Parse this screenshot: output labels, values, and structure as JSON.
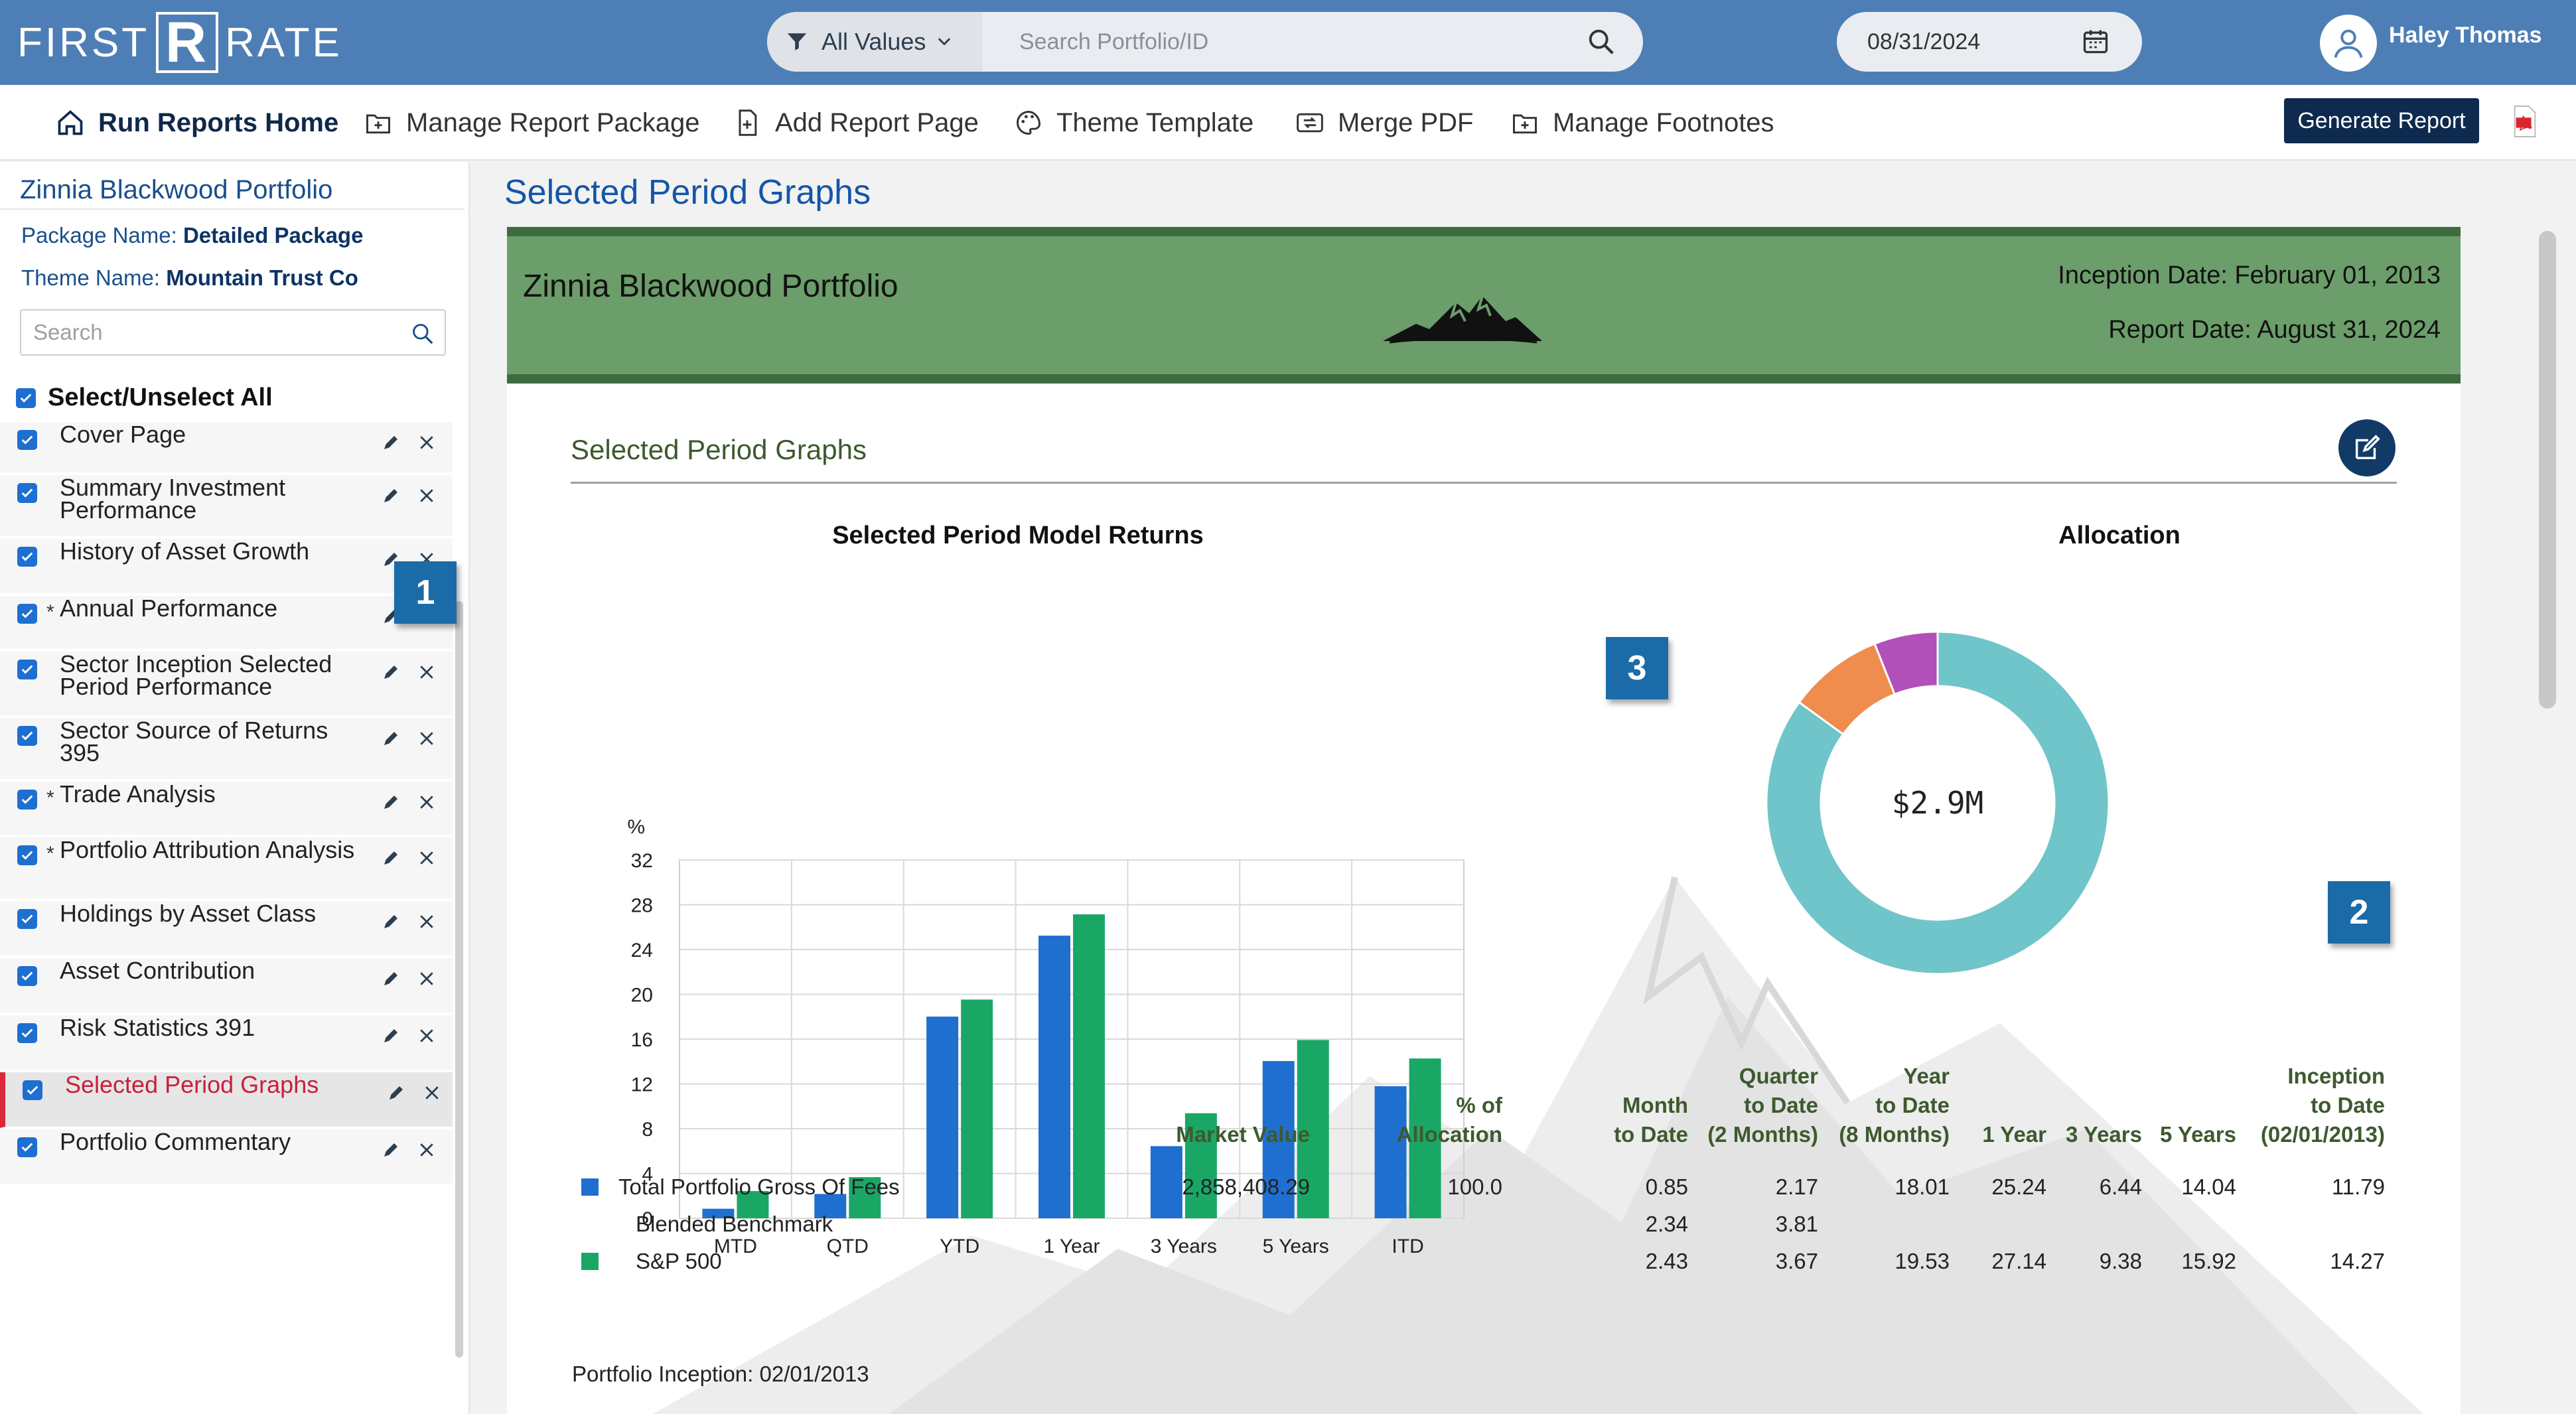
{
  "app": {
    "logo_left": "FIRST",
    "logo_mark": "R",
    "logo_right": "RATE"
  },
  "header": {
    "filter_label": "All Values",
    "search_placeholder": "Search Portfolio/ID",
    "date": "08/31/2024",
    "user_name": "Haley Thomas"
  },
  "toolbar": {
    "items": [
      "Run Reports Home",
      "Manage Report Package",
      "Add Report Page",
      "Theme Template",
      "Merge PDF",
      "Manage Footnotes"
    ],
    "generate_label": "Generate Report"
  },
  "sidebar": {
    "title": "Zinnia Blackwood Portfolio",
    "package_label": "Package Name:",
    "package_value": "Detailed Package",
    "theme_label": "Theme Name:",
    "theme_value": "Mountain Trust Co",
    "search_placeholder": "Search",
    "select_all": "Select/Unselect All",
    "items": [
      {
        "label": "Cover Page",
        "starred": false,
        "checked": true
      },
      {
        "label": "Summary Investment Performance",
        "starred": false,
        "checked": true
      },
      {
        "label": "History of Asset Growth",
        "starred": false,
        "checked": true
      },
      {
        "label": "Annual Performance",
        "starred": true,
        "checked": true
      },
      {
        "label": "Sector Inception Selected Period Performance",
        "starred": false,
        "checked": true
      },
      {
        "label": "Sector Source of Returns 395",
        "starred": false,
        "checked": true
      },
      {
        "label": "Trade Analysis",
        "starred": true,
        "checked": true
      },
      {
        "label": "Portfolio Attribution Analysis",
        "starred": true,
        "checked": true
      },
      {
        "label": "Holdings by Asset Class",
        "starred": false,
        "checked": true
      },
      {
        "label": "Asset Contribution",
        "starred": false,
        "checked": true
      },
      {
        "label": "Risk Statistics 391",
        "starred": false,
        "checked": true
      },
      {
        "label": "Selected Period Graphs",
        "starred": false,
        "checked": true,
        "active": true
      },
      {
        "label": "Portfolio Commentary",
        "starred": false,
        "checked": true
      }
    ]
  },
  "callouts": [
    "1",
    "2",
    "3"
  ],
  "main": {
    "heading": "Selected Period Graphs",
    "banner": {
      "portfolio": "Zinnia Blackwood Portfolio",
      "inception": "Inception Date: February 01, 2013",
      "report_date": "Report Date: August 31, 2024"
    },
    "section_title": "Selected Period Graphs",
    "returns_chart_title": "Selected Period Model Returns",
    "allocation_title": "Allocation",
    "allocation_center": "$2.9M",
    "inception_note": "Portfolio Inception: 02/01/2013"
  },
  "chart_data": [
    {
      "type": "bar",
      "title": "Selected Period Model Returns",
      "ylabel": "%",
      "ylim": [
        0,
        32
      ],
      "yticks": [
        0,
        4,
        8,
        12,
        16,
        20,
        24,
        28,
        32
      ],
      "categories": [
        "MTD",
        "QTD",
        "YTD",
        "1 Year",
        "3 Years",
        "5 Years",
        "ITD"
      ],
      "grid": true,
      "series": [
        {
          "name": "Total Portfolio Gross Of Fees",
          "color": "#1f6fd0",
          "values": [
            0.85,
            2.17,
            18.01,
            25.24,
            6.44,
            14.04,
            11.79
          ]
        },
        {
          "name": "S&P 500",
          "color": "#1aa766",
          "values": [
            2.43,
            3.67,
            19.53,
            27.14,
            9.38,
            15.92,
            14.27
          ]
        }
      ]
    },
    {
      "type": "pie",
      "title": "Allocation",
      "center_label": "$2.9M",
      "values": [
        85,
        9,
        6
      ],
      "colors": [
        "#6fc5c9",
        "#ef8d4e",
        "#b150b8"
      ]
    }
  ],
  "perf_table": {
    "headers": [
      [
        "Market Value"
      ],
      [
        "% of",
        "Allocation"
      ],
      [
        "Month",
        "to Date"
      ],
      [
        "Quarter",
        "to Date",
        "(2 Months)"
      ],
      [
        "Year",
        "to Date",
        "(8 Months)"
      ],
      [
        "1 Year"
      ],
      [
        "3 Years"
      ],
      [
        "5 Years"
      ],
      [
        "Inception",
        "to Date",
        "(02/01/2013)"
      ]
    ],
    "rows": [
      {
        "label": "Total Portfolio Gross Of Fees",
        "color": "#1f6fd0",
        "cells": [
          "2,858,408.29",
          "100.0",
          "0.85",
          "2.17",
          "18.01",
          "25.24",
          "6.44",
          "14.04",
          "11.79"
        ]
      },
      {
        "label": "Blended Benchmark",
        "color": "",
        "cells": [
          "",
          "",
          "2.34",
          "3.81",
          "",
          "",
          "",
          "",
          ""
        ]
      },
      {
        "label": "S&P 500",
        "color": "#1aa766",
        "cells": [
          "",
          "",
          "2.43",
          "3.67",
          "19.53",
          "27.14",
          "9.38",
          "15.92",
          "14.27"
        ]
      }
    ]
  }
}
